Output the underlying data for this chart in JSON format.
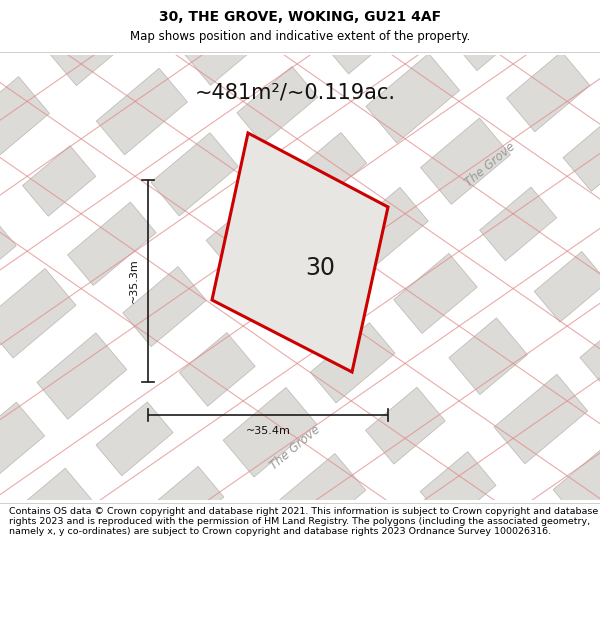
{
  "title": "30, THE GROVE, WOKING, GU21 4AF",
  "subtitle": "Map shows position and indicative extent of the property.",
  "area_label": "~481m²/~0.119ac.",
  "width_label": "~35.4m",
  "height_label": "~35.3m",
  "plot_number": "30",
  "street_label_1": "The Grove",
  "street_label_2": "The Grove",
  "footer": "Contains OS data © Crown copyright and database right 2021. This information is subject to Crown copyright and database rights 2023 and is reproduced with the permission of HM Land Registry. The polygons (including the associated geometry, namely x, y co-ordinates) are subject to Crown copyright and database rights 2023 Ordnance Survey 100026316.",
  "map_bg": "#eeece8",
  "building_fill": "#dddbd7",
  "building_edge": "#c0bebb",
  "plot_edge": "#cc0000",
  "plot_fill": "#e8e6e2",
  "red_line_color": "#e08888",
  "dim_line_color": "#1a1a1a",
  "title_fontsize": 10,
  "subtitle_fontsize": 8.5,
  "area_fontsize": 15,
  "dim_fontsize": 8,
  "number_fontsize": 17,
  "footer_fontsize": 6.8,
  "street_label_fontsize": 8.5
}
